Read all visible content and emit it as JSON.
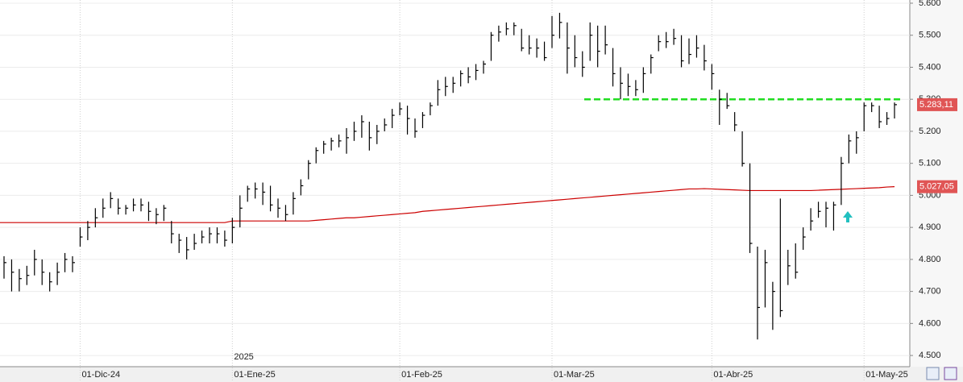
{
  "chart_data": {
    "type": "ohlc",
    "categories": [
      null,
      null,
      null,
      null,
      null,
      null,
      null,
      null,
      null,
      null,
      "01-Dic-24",
      null,
      null,
      null,
      null,
      null,
      null,
      null,
      null,
      null,
      null,
      null,
      null,
      null,
      null,
      null,
      null,
      null,
      null,
      null,
      "01-Ene-25",
      null,
      null,
      null,
      null,
      null,
      null,
      null,
      null,
      null,
      null,
      null,
      null,
      null,
      null,
      null,
      null,
      null,
      null,
      null,
      null,
      null,
      "01-Feb-25",
      null,
      null,
      null,
      null,
      null,
      null,
      null,
      null,
      null,
      null,
      null,
      null,
      null,
      null,
      null,
      null,
      null,
      null,
      null,
      "01-Mar-25",
      null,
      null,
      null,
      null,
      null,
      null,
      null,
      null,
      null,
      null,
      null,
      null,
      null,
      null,
      null,
      null,
      null,
      null,
      null,
      null,
      "01-Abr-25",
      null,
      null,
      null,
      null,
      null,
      null,
      null,
      null,
      null,
      null,
      null,
      null,
      null,
      null,
      null,
      null,
      null,
      null,
      null,
      "01-May-25",
      null,
      null,
      null,
      null
    ],
    "high": [
      4810,
      4800,
      4770,
      4780,
      4830,
      4800,
      4760,
      4790,
      4820,
      4810,
      4900,
      4920,
      4960,
      4990,
      5010,
      4990,
      4970,
      4990,
      4990,
      4980,
      4960,
      4970,
      4920,
      4880,
      4870,
      4880,
      4890,
      4900,
      4900,
      4890,
      4930,
      5000,
      5030,
      5040,
      5040,
      5030,
      4990,
      4970,
      5010,
      5050,
      5110,
      5150,
      5170,
      5180,
      5190,
      5210,
      5230,
      5250,
      5230,
      5220,
      5240,
      5270,
      5290,
      5280,
      5240,
      5260,
      5290,
      5360,
      5370,
      5370,
      5390,
      5400,
      5410,
      5420,
      5510,
      5530,
      5540,
      5540,
      5520,
      5500,
      5490,
      5480,
      5560,
      5570,
      5540,
      5500,
      5450,
      5540,
      5530,
      5530,
      5460,
      5400,
      5380,
      5360,
      5400,
      5440,
      5500,
      5510,
      5520,
      5500,
      5490,
      5500,
      5470,
      5410,
      5330,
      5320,
      5260,
      5200,
      5100,
      4840,
      4830,
      4730,
      4990,
      4830,
      4850,
      4900,
      4960,
      4980,
      4980,
      4980,
      5120,
      5190,
      5200,
      5290,
      5290,
      5280,
      5260,
      5290
    ],
    "low": [
      4740,
      4700,
      4700,
      4720,
      4750,
      4720,
      4700,
      4720,
      4760,
      4760,
      4840,
      4860,
      4900,
      4930,
      4960,
      4940,
      4940,
      4950,
      4950,
      4920,
      4910,
      4920,
      4850,
      4820,
      4800,
      4830,
      4850,
      4850,
      4850,
      4840,
      4850,
      4900,
      4980,
      4990,
      4970,
      4950,
      4930,
      4920,
      4940,
      5000,
      5050,
      5100,
      5130,
      5140,
      5150,
      5130,
      5170,
      5180,
      5140,
      5160,
      5200,
      5210,
      5250,
      5190,
      5180,
      5210,
      5250,
      5280,
      5310,
      5320,
      5340,
      5350,
      5360,
      5380,
      5420,
      5480,
      5500,
      5500,
      5450,
      5440,
      5430,
      5420,
      5460,
      5490,
      5380,
      5400,
      5370,
      5420,
      5400,
      5440,
      5340,
      5300,
      5310,
      5310,
      5320,
      5380,
      5450,
      5460,
      5470,
      5400,
      5410,
      5430,
      5390,
      5330,
      5220,
      5270,
      5200,
      5090,
      4820,
      4550,
      4650,
      4580,
      4620,
      4720,
      4740,
      4830,
      4890,
      4930,
      4900,
      4890,
      4970,
      5100,
      5130,
      5200,
      5260,
      5210,
      5220,
      5240
    ],
    "close": [
      4790,
      4760,
      4740,
      4750,
      4800,
      4760,
      4730,
      4760,
      4800,
      4790,
      4870,
      4900,
      4930,
      4960,
      4990,
      4960,
      4960,
      4970,
      4970,
      4950,
      4940,
      4960,
      4880,
      4860,
      4830,
      4850,
      4870,
      4880,
      4880,
      4860,
      4900,
      4960,
      5020,
      5020,
      5010,
      4970,
      4960,
      4940,
      4990,
      5030,
      5100,
      5140,
      5160,
      5170,
      5170,
      5180,
      5200,
      5230,
      5180,
      5200,
      5220,
      5250,
      5270,
      5240,
      5200,
      5250,
      5280,
      5330,
      5340,
      5350,
      5380,
      5370,
      5390,
      5410,
      5500,
      5510,
      5520,
      5530,
      5460,
      5460,
      5460,
      5430,
      5500,
      5540,
      5460,
      5430,
      5400,
      5500,
      5450,
      5470,
      5380,
      5350,
      5340,
      5330,
      5380,
      5430,
      5480,
      5480,
      5490,
      5420,
      5440,
      5460,
      5420,
      5380,
      5300,
      5280,
      5220,
      5100,
      4850,
      4650,
      4790,
      4700,
      4640,
      4780,
      4760,
      4870,
      4920,
      4950,
      4960,
      4970,
      5100,
      5170,
      5180,
      5280,
      5280,
      5230,
      5240,
      5283.11
    ],
    "color": "#000000",
    "close_label": "5.283,11",
    "ma": {
      "values": [
        4915,
        4915,
        4915,
        4915,
        4915,
        4915,
        4915,
        4915,
        4915,
        4915,
        4915,
        4915,
        4915,
        4915,
        4915,
        4915,
        4915,
        4915,
        4915,
        4915,
        4915,
        4915,
        4915,
        4915,
        4915,
        4915,
        4915,
        4915,
        4915,
        4915,
        4920,
        4920,
        4920,
        4920,
        4920,
        4920,
        4920,
        4920,
        4920,
        4920,
        4920,
        4922,
        4924,
        4926,
        4928,
        4930,
        4930,
        4932,
        4934,
        4936,
        4938,
        4940,
        4942,
        4944,
        4946,
        4950,
        4952,
        4954,
        4956,
        4958,
        4960,
        4962,
        4964,
        4966,
        4968,
        4970,
        4972,
        4974,
        4976,
        4978,
        4980,
        4982,
        4984,
        4986,
        4988,
        4990,
        4992,
        4994,
        4996,
        4998,
        5000,
        5002,
        5004,
        5006,
        5008,
        5010,
        5012,
        5014,
        5016,
        5018,
        5020,
        5020,
        5021,
        5020,
        5019,
        5018,
        5017,
        5016,
        5015,
        5015,
        5015,
        5015,
        5015,
        5015,
        5015,
        5015,
        5015,
        5016,
        5017,
        5018,
        5019,
        5020,
        5021,
        5022,
        5023,
        5024,
        5026,
        5027.05
      ],
      "color": "#cc0000",
      "label": "5.027,05"
    },
    "reference_line": {
      "value": 5300,
      "color": "#22dd22"
    },
    "annotation": "2025",
    "ylim": [
      4465,
      5610
    ],
    "yticks": [
      {
        "value": 4500,
        "label": "4.500"
      },
      {
        "value": 4600,
        "label": "4.600"
      },
      {
        "value": 4700,
        "label": "4.700"
      },
      {
        "value": 4800,
        "label": "4.800"
      },
      {
        "value": 4900,
        "label": "4.900"
      },
      {
        "value": 5000,
        "label": "5.000"
      },
      {
        "value": 5100,
        "label": "5.100"
      },
      {
        "value": 5200,
        "label": "5.200"
      },
      {
        "value": 5300,
        "label": "5.300"
      },
      {
        "value": 5400,
        "label": "5.400"
      },
      {
        "value": 5500,
        "label": "5.500"
      },
      {
        "value": 5600,
        "label": "5.600"
      }
    ],
    "grid": true
  }
}
